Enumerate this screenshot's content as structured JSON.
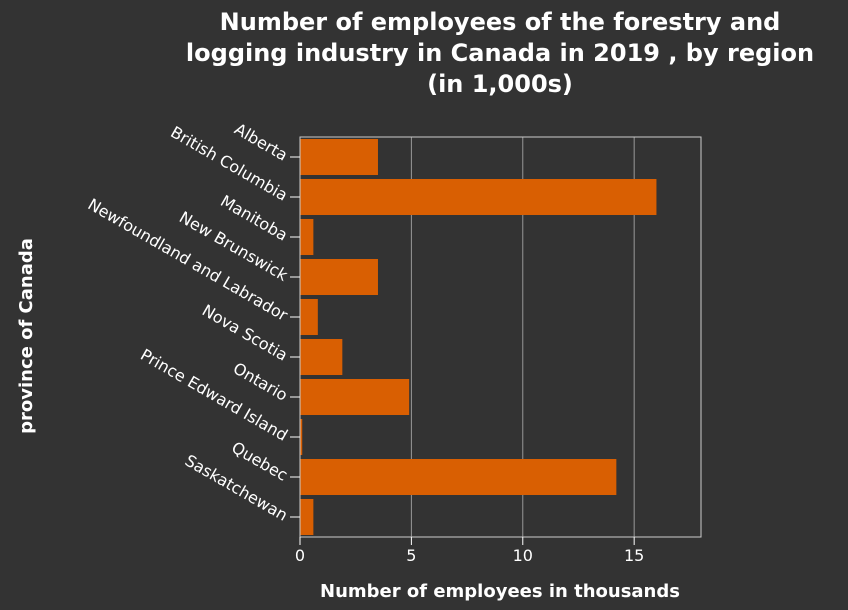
{
  "colors": {
    "background": "#333333",
    "plot_background": "#333333",
    "bar": "#d95f02",
    "grid": "#999999",
    "frame": "#cccccc",
    "text": "#ffffff"
  },
  "chart_data": {
    "type": "bar",
    "orientation": "horizontal",
    "title_lines": [
      "Number of employees of the forestry and",
      "logging industry in Canada in 2019 , by region",
      "(in 1,000s)"
    ],
    "xlabel": "Number of employees in thousands",
    "ylabel": "province of Canada",
    "xlim": [
      0,
      18
    ],
    "xticks": [
      0,
      5,
      10,
      15
    ],
    "grid": true,
    "legend": "none",
    "categories": [
      "Alberta",
      "British Columbia",
      "Manitoba",
      "New Brunswick",
      "Newfoundland and Labrador",
      "Nova Scotia",
      "Ontario",
      "Prince Edward Island",
      "Quebec",
      "Saskatchewan"
    ],
    "values": [
      3.5,
      16,
      0.6,
      3.5,
      0.8,
      1.9,
      4.9,
      0.1,
      14.2,
      0.6
    ]
  }
}
